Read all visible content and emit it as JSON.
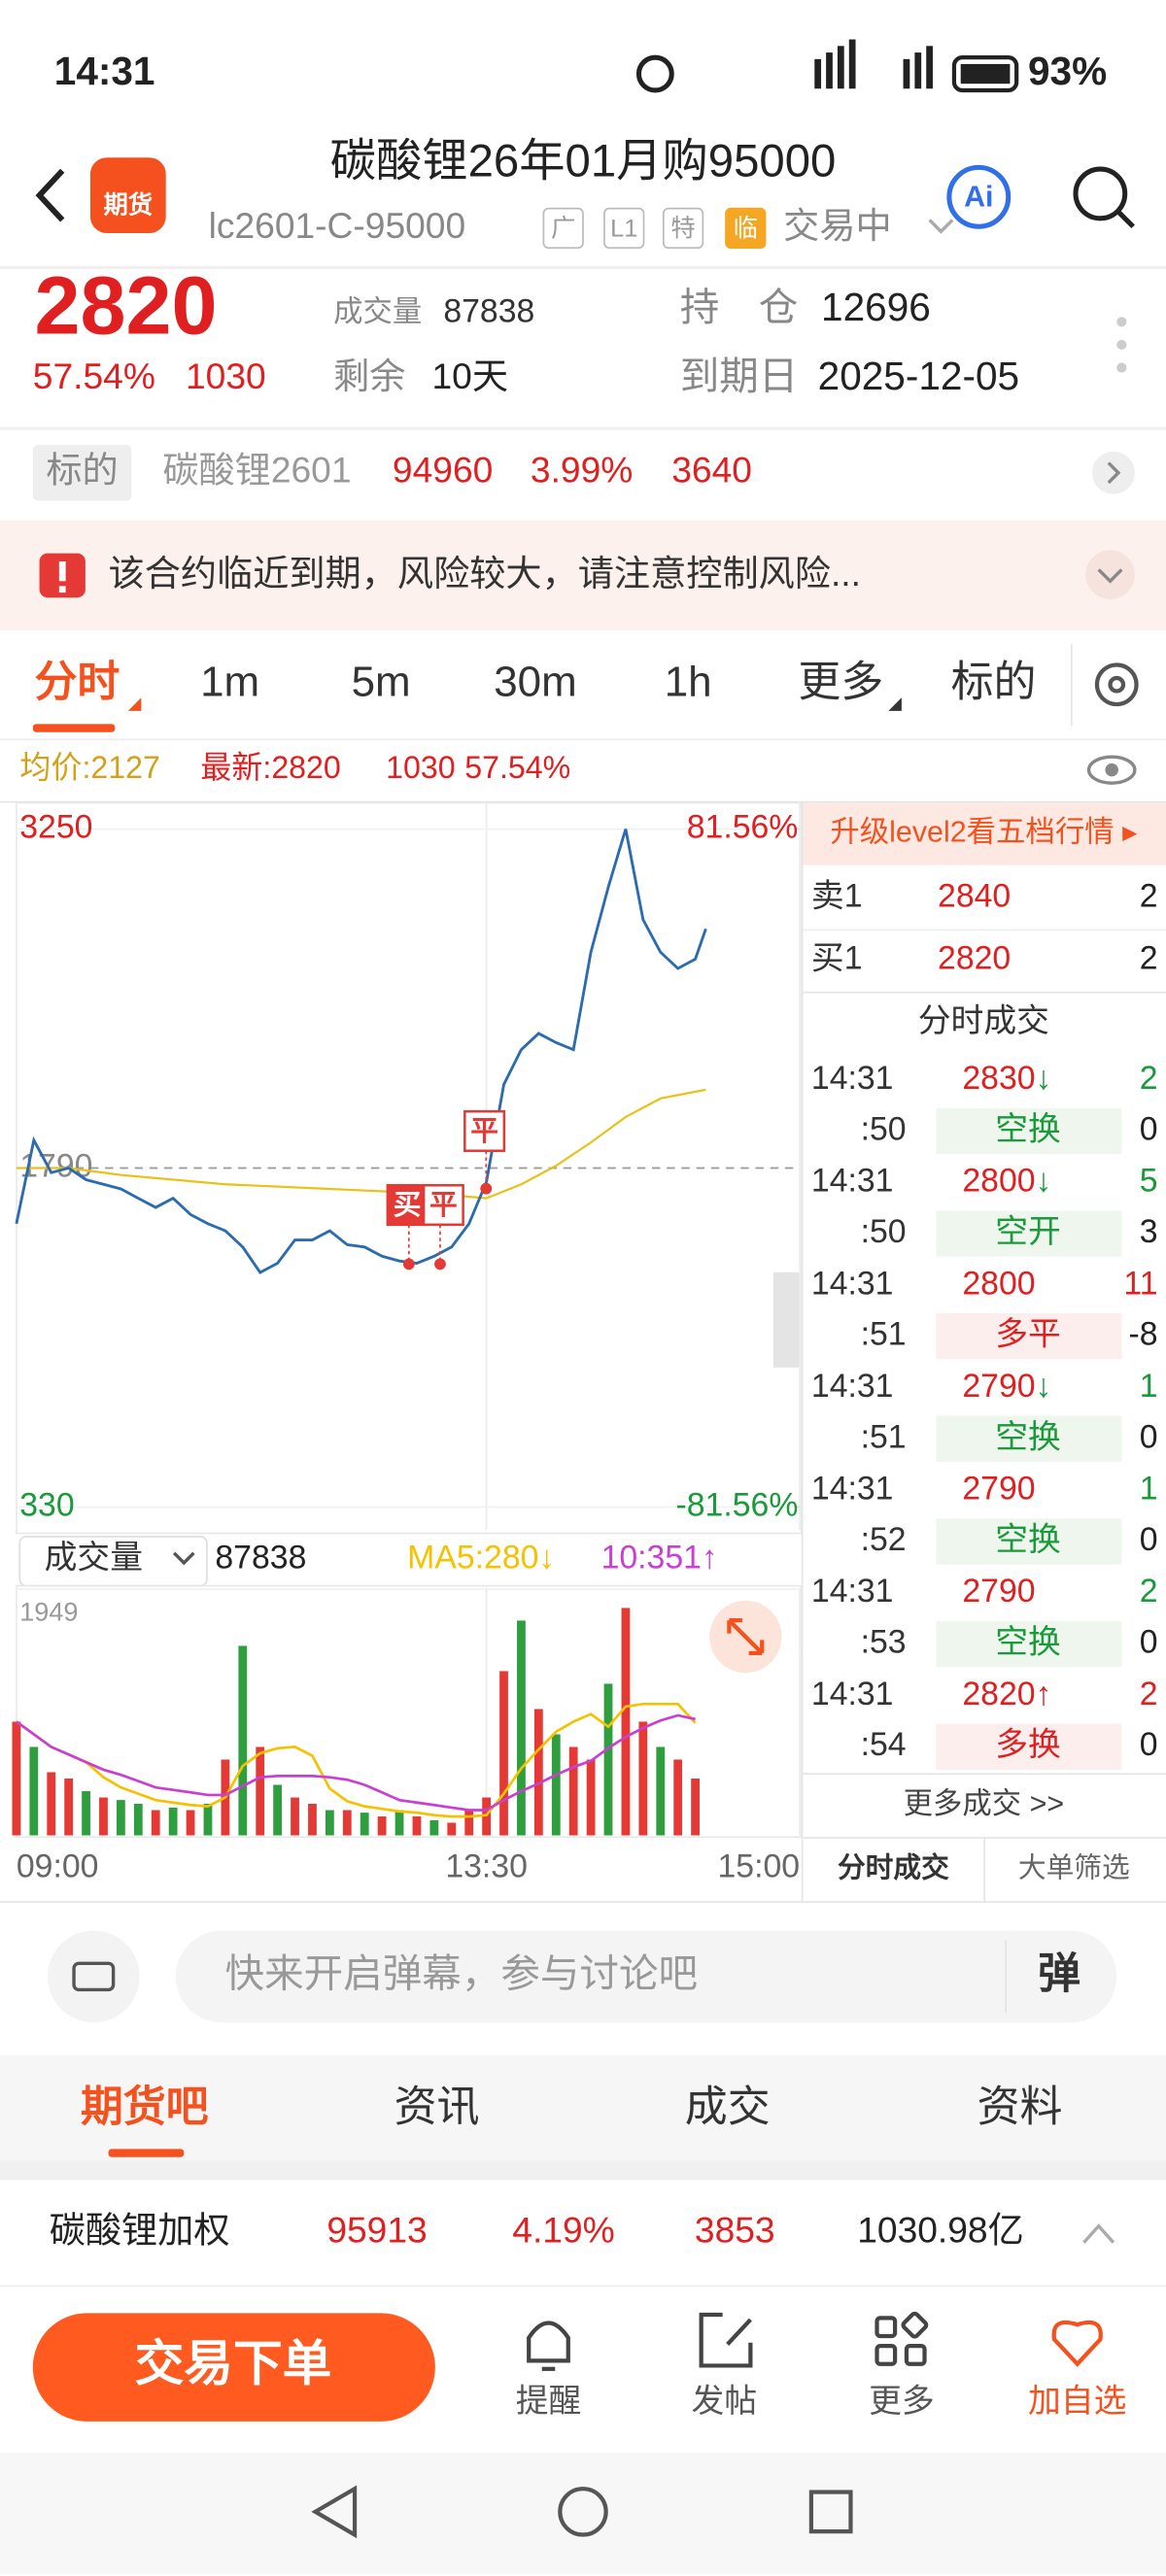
{
  "status": {
    "time": "14:31",
    "battery": "93%"
  },
  "header": {
    "logo": "期货",
    "title": "碳酸锂26年01月购95000",
    "code": "lc2601-C-95000",
    "tags": [
      "广",
      "L1",
      "特",
      "临"
    ],
    "state": "交易中",
    "ai": "Ai"
  },
  "quote": {
    "price": "2820",
    "change_pct": "57.54%",
    "change": "1030",
    "volume_label": "成交量",
    "volume": "87838",
    "oi_label": "持　仓",
    "oi": "12696",
    "remain_label": "剩余",
    "remain": "10天",
    "expiry_label": "到期日",
    "expiry": "2025-12-05"
  },
  "underlying": {
    "label": "标的",
    "name": "碳酸锂2601",
    "price": "94960",
    "change_pct": "3.99%",
    "change": "3640"
  },
  "warning": "该合约临近到期，风险较大，请注意控制风险...",
  "tabs": [
    "分时",
    "1m",
    "5m",
    "30m",
    "1h",
    "更多",
    "标的"
  ],
  "summary": {
    "avg": "均价:2127",
    "latest": "最新:2820",
    "change": "1030",
    "change_pct": "57.54%"
  },
  "chart_data": [
    {
      "type": "line",
      "xlim": [
        0,
        225
      ],
      "ylim": [
        330,
        3250
      ],
      "yticks": [
        330,
        1790,
        3250
      ],
      "ytick_colors": [
        "#1a9a3a",
        "#888888",
        "#e02020"
      ],
      "y2lim": [
        -81.56,
        81.56
      ],
      "y2ticks": [
        {
          "value": -81.56,
          "label": "-81.56%"
        },
        {
          "value": 81.56,
          "label": "81.56%"
        }
      ],
      "y2tick_colors": [
        "#1a9a3a",
        "#e02020"
      ],
      "series": [
        {
          "color": "#2b6cb0",
          "x": [
            0,
            5,
            10,
            15,
            20,
            25,
            30,
            35,
            40,
            45,
            50,
            55,
            60,
            65,
            70,
            75,
            80,
            85,
            90,
            95,
            100,
            105,
            110,
            115,
            120,
            125,
            130,
            135,
            140,
            145,
            150,
            155,
            160,
            165,
            170,
            175,
            180,
            185,
            190,
            195,
            198
          ],
          "values": [
            1550,
            1910,
            1770,
            1790,
            1740,
            1720,
            1700,
            1660,
            1620,
            1660,
            1590,
            1550,
            1520,
            1450,
            1340,
            1380,
            1480,
            1480,
            1520,
            1460,
            1450,
            1410,
            1390,
            1380,
            1410,
            1450,
            1550,
            1730,
            2150,
            2300,
            2370,
            2330,
            2300,
            2720,
            3000,
            3250,
            2860,
            2720,
            2650,
            2690,
            2820
          ]
        },
        {
          "color": "#e8c21a",
          "x": [
            0,
            15,
            30,
            60,
            90,
            120,
            135,
            145,
            155,
            165,
            175,
            185,
            198
          ],
          "values": [
            1790,
            1790,
            1760,
            1720,
            1700,
            1680,
            1660,
            1720,
            1800,
            1900,
            2010,
            2090,
            2127
          ]
        }
      ],
      "annotations": [
        "买",
        "平",
        "平"
      ]
    },
    {
      "type": "bar",
      "label": "成交量",
      "total": "87838",
      "ma_labels": [
        "MA5:280↓",
        "10:351↑"
      ],
      "xlim": [
        0,
        225
      ],
      "xticks": [
        {
          "value": 0,
          "label": "09:00"
        },
        {
          "value": 135,
          "label": "13:30"
        },
        {
          "value": 225,
          "label": "15:00"
        }
      ],
      "ylim": [
        0,
        1949
      ],
      "yticks": [
        1949
      ],
      "x": [
        0,
        5,
        10,
        15,
        20,
        25,
        30,
        35,
        40,
        45,
        50,
        55,
        60,
        65,
        70,
        75,
        80,
        85,
        90,
        95,
        100,
        105,
        110,
        115,
        120,
        125,
        130,
        135,
        140,
        145,
        150,
        155,
        160,
        165,
        170,
        175,
        180,
        185,
        190,
        195
      ],
      "values": [
        900,
        700,
        500,
        450,
        350,
        300,
        280,
        250,
        200,
        220,
        200,
        250,
        600,
        1500,
        700,
        400,
        300,
        250,
        200,
        200,
        180,
        150,
        200,
        150,
        120,
        100,
        200,
        300,
        1300,
        1700,
        1000,
        800,
        700,
        600,
        1200,
        1800,
        900,
        700,
        600,
        450
      ],
      "colors": [
        "#e53935",
        "#2e9e3e",
        "#e53935",
        "#e53935",
        "#2e9e3e",
        "#e53935",
        "#2e9e3e",
        "#2e9e3e",
        "#e53935",
        "#2e9e3e",
        "#e53935",
        "#2e9e3e",
        "#e53935",
        "#2e9e3e",
        "#e53935",
        "#2e9e3e",
        "#e53935",
        "#e53935",
        "#2e9e3e",
        "#e53935",
        "#2e9e3e",
        "#e53935",
        "#2e9e3e",
        "#e53935",
        "#2e9e3e",
        "#e53935",
        "#e53935",
        "#e53935",
        "#e53935",
        "#2e9e3e",
        "#e53935",
        "#2e9e3e",
        "#e53935",
        "#e53935",
        "#2e9e3e",
        "#e53935",
        "#e53935",
        "#2e9e3e",
        "#e53935",
        "#e53935"
      ],
      "lines": [
        {
          "color": "#f5c200",
          "values": [
            900,
            800,
            700,
            640,
            580,
            460,
            380,
            330,
            280,
            260,
            240,
            230,
            300,
            550,
            650,
            690,
            700,
            630,
            370,
            270,
            230,
            210,
            190,
            180,
            160,
            150,
            150,
            160,
            330,
            530,
            680,
            820,
            900,
            960,
            860,
            1020,
            1040,
            1040,
            1040,
            890
          ]
        },
        {
          "color": "#c83fd1",
          "values": [
            900,
            800,
            700,
            640,
            580,
            520,
            480,
            430,
            380,
            360,
            340,
            320,
            320,
            390,
            460,
            470,
            470,
            470,
            460,
            440,
            400,
            340,
            280,
            260,
            240,
            220,
            200,
            200,
            280,
            350,
            410,
            480,
            540,
            590,
            690,
            780,
            850,
            910,
            950,
            920
          ]
        }
      ]
    }
  ],
  "book": {
    "banner": "升级level2看五档行情 ▸",
    "levels": [
      [
        "卖1",
        "2840",
        "2"
      ],
      [
        "买1",
        "2820",
        "2"
      ]
    ]
  },
  "trades": {
    "title": "分时成交",
    "rows": [
      {
        "time": "14:31",
        "sec": ":50",
        "price": "2830",
        "dir": "↓",
        "vol": "2",
        "kind": "空换",
        "oi": "0"
      },
      {
        "time": "14:31",
        "sec": ":50",
        "price": "2800",
        "dir": "↓",
        "vol": "5",
        "kind": "空开",
        "oi": "3"
      },
      {
        "time": "14:31",
        "sec": ":51",
        "price": "2800",
        "vol": "11",
        "kind": "多平",
        "oi": "-8"
      },
      {
        "time": "14:31",
        "sec": ":51",
        "price": "2790",
        "dir": "↓",
        "vol": "1",
        "kind": "空换",
        "oi": "0"
      },
      {
        "time": "14:31",
        "sec": ":52",
        "price": "2790",
        "vol": "1",
        "kind": "空换",
        "oi": "0"
      },
      {
        "time": "14:31",
        "sec": ":53",
        "price": "2790",
        "vol": "2",
        "kind": "空换",
        "oi": "0"
      },
      {
        "time": "14:31",
        "sec": ":54",
        "price": "2820",
        "dir": "↑",
        "vol": "2",
        "kind": "多换",
        "oi": "0"
      }
    ],
    "more": "更多成交 >>",
    "tabs": [
      "分时成交",
      "大单筛选"
    ]
  },
  "comment": {
    "placeholder": "快来开启弹幕，参与讨论吧",
    "button": "弹"
  },
  "sections": [
    "期货吧",
    "资讯",
    "成交",
    "资料"
  ],
  "ticker": {
    "name": "碳酸锂加权",
    "price": "95913",
    "change_pct": "4.19%",
    "change": "3853",
    "amount": "1030.98亿"
  },
  "actions": {
    "trade": "交易下单",
    "items": [
      "提醒",
      "发帖",
      "更多",
      "加自选"
    ]
  }
}
